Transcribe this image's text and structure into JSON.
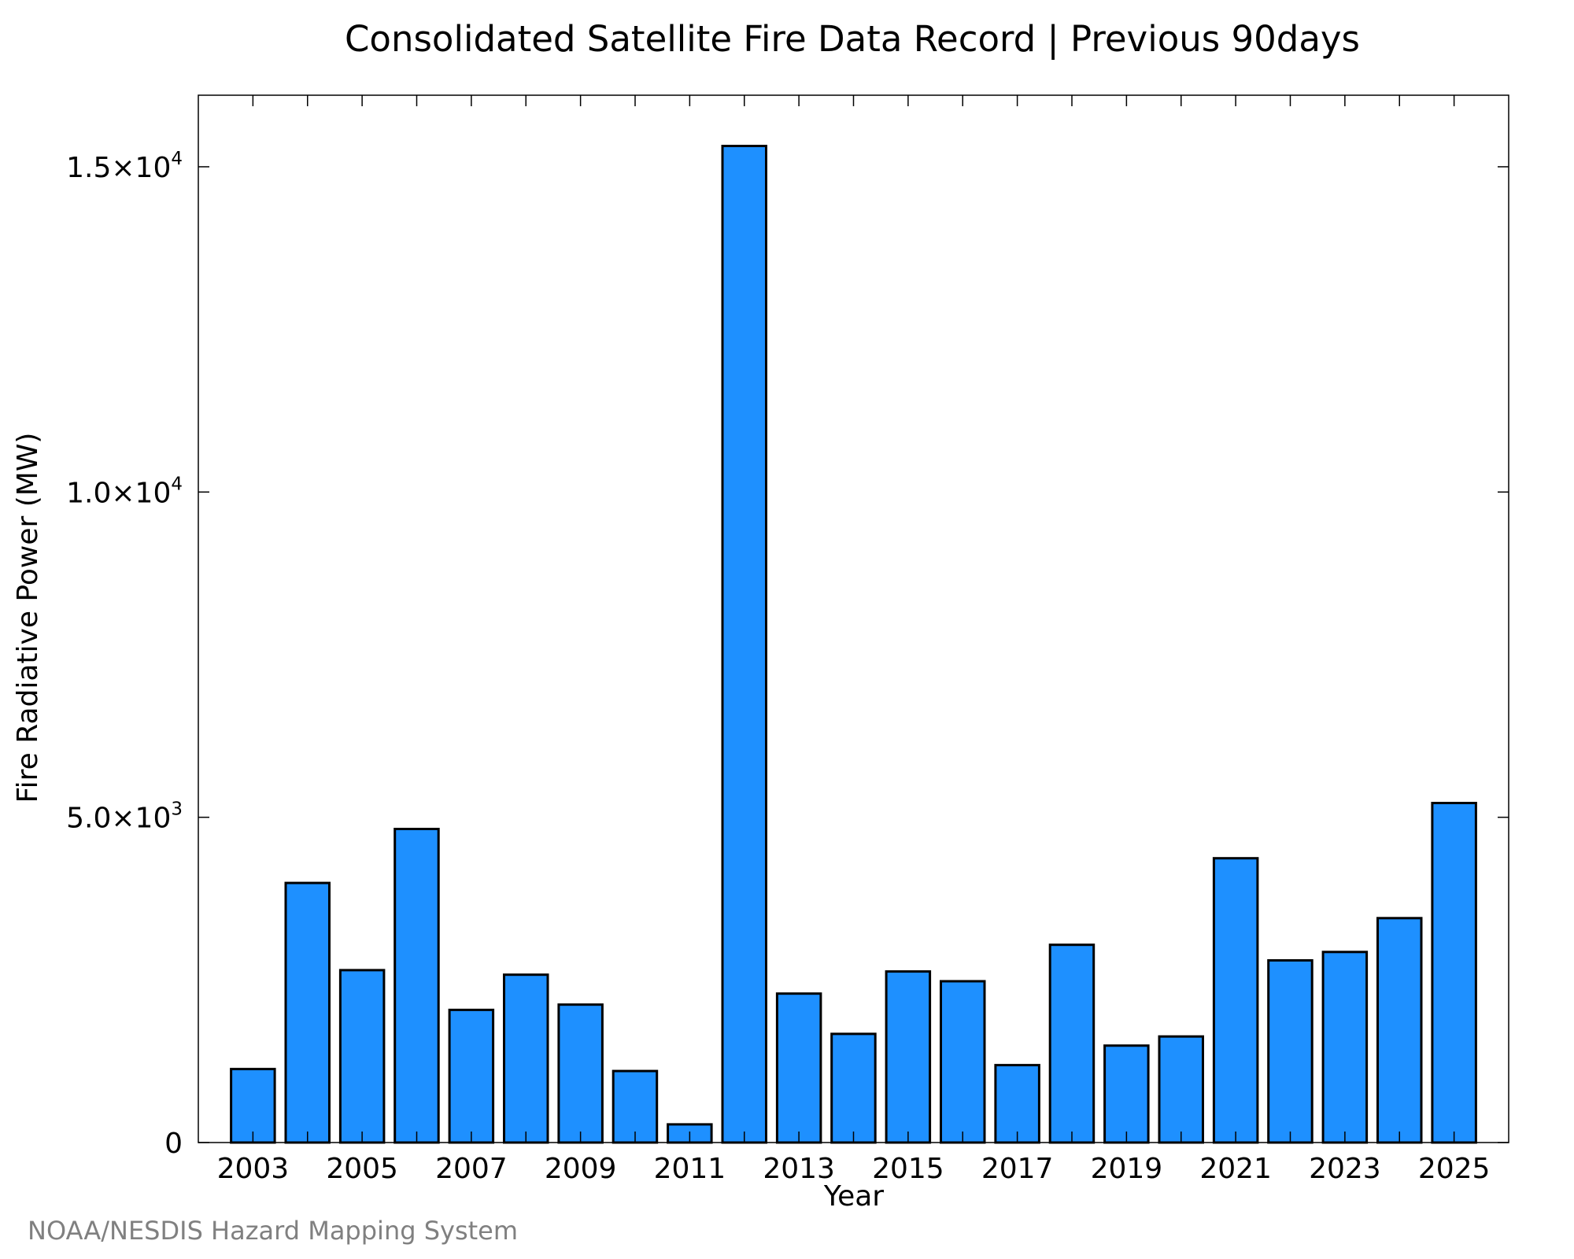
{
  "chart_data": {
    "type": "bar",
    "title": "Consolidated Satellite Fire Data Record | Previous 90days",
    "xlabel": "Year",
    "ylabel": "Fire Radiative Power (MW)",
    "credit": "NOAA/NESDIS Hazard Mapping System",
    "categories": [
      "2003",
      "2004",
      "2005",
      "2006",
      "2007",
      "2008",
      "2009",
      "2010",
      "2011",
      "2012",
      "2013",
      "2014",
      "2015",
      "2016",
      "2017",
      "2018",
      "2019",
      "2020",
      "2021",
      "2022",
      "2023",
      "2024",
      "2025"
    ],
    "values": [
      1130,
      3990,
      2650,
      4820,
      2040,
      2580,
      2120,
      1100,
      280,
      15320,
      2290,
      1670,
      2630,
      2480,
      1190,
      3040,
      1490,
      1630,
      4370,
      2800,
      2930,
      3450,
      5220
    ],
    "ylim": [
      0,
      16100
    ],
    "xlim": [
      2002.0,
      2026.0
    ],
    "x_ticks": [
      "2003",
      "2005",
      "2007",
      "2009",
      "2011",
      "2013",
      "2015",
      "2017",
      "2019",
      "2021",
      "2023",
      "2025"
    ],
    "y_ticks": [
      {
        "value": 0,
        "label": "0",
        "exp": ""
      },
      {
        "value": 5000,
        "label": "5.0×10",
        "exp": "3"
      },
      {
        "value": 10000,
        "label": "1.0×10",
        "exp": "4"
      },
      {
        "value": 15000,
        "label": "1.5×10",
        "exp": "4"
      }
    ],
    "grid": false,
    "colors": {
      "bar": "#1e90ff",
      "edge": "#000000"
    }
  }
}
